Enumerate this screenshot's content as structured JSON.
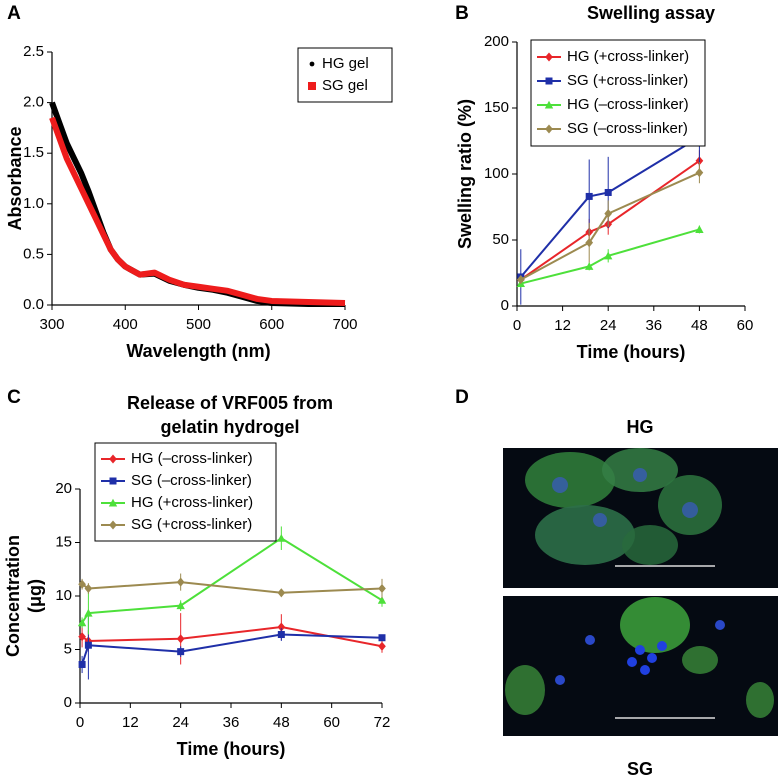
{
  "chart_data": [
    {
      "panel": "A",
      "type": "line",
      "xlabel": "Wavelength (nm)",
      "ylabel": "Absorbance",
      "x": [
        300,
        310,
        320,
        330,
        340,
        350,
        360,
        370,
        380,
        390,
        400,
        420,
        440,
        460,
        480,
        500,
        520,
        540,
        560,
        580,
        600,
        650,
        700
      ],
      "xlim": [
        300,
        700
      ],
      "xticks": [
        300,
        400,
        500,
        600,
        700
      ],
      "ylim": [
        0,
        2.5
      ],
      "yticks": [
        {
          "value": 0,
          "label": "0.0"
        },
        0.5,
        {
          "value": 1,
          "label": "1.0"
        },
        1.5,
        {
          "value": 2,
          "label": "2.0"
        },
        2.5
      ],
      "legend": "upper right",
      "series": [
        {
          "name": "HG gel",
          "color": "#000000",
          "marker": "circle",
          "values": [
            2.0,
            1.8,
            1.6,
            1.45,
            1.3,
            1.12,
            0.92,
            0.72,
            0.55,
            0.45,
            0.38,
            0.3,
            0.31,
            0.24,
            0.2,
            0.17,
            0.15,
            0.12,
            0.08,
            0.04,
            0.02,
            0.01,
            0.01
          ]
        },
        {
          "name": "SG gel",
          "color": "#ee1c1c",
          "marker": "square",
          "values": [
            1.85,
            1.65,
            1.45,
            1.3,
            1.15,
            1.0,
            0.85,
            0.7,
            0.55,
            0.45,
            0.38,
            0.3,
            0.32,
            0.25,
            0.2,
            0.18,
            0.16,
            0.14,
            0.1,
            0.06,
            0.04,
            0.03,
            0.02
          ]
        }
      ]
    },
    {
      "panel": "B",
      "type": "line",
      "title": "Swelling assay",
      "xlabel": "Time (hours)",
      "ylabel": "Swelling ratio (%)",
      "x": [
        1,
        19,
        24,
        48
      ],
      "xlim": [
        0,
        60
      ],
      "xticks": [
        0,
        12,
        24,
        36,
        48,
        60
      ],
      "ylim": [
        0,
        200
      ],
      "yticks": [
        0,
        50,
        100,
        150,
        200
      ],
      "legend": "upper left",
      "series": [
        {
          "name": "HG (+cross-linker)",
          "color": "#e8262a",
          "marker": "diamond",
          "values": [
            20,
            56,
            62,
            110
          ],
          "errors": [
            3,
            10,
            8,
            8
          ]
        },
        {
          "name": "SG (+cross-linker)",
          "color": "#1f2fa8",
          "marker": "square",
          "values": [
            22,
            83,
            86,
            128
          ],
          "errors": [
            21,
            28,
            27,
            22
          ]
        },
        {
          "name": "HG (–cross-linker)",
          "color": "#4de03a",
          "marker": "triangle",
          "values": [
            17,
            30,
            38,
            58
          ],
          "errors": [
            3,
            3,
            5,
            3
          ]
        },
        {
          "name": "SG (–cross-linker)",
          "color": "#9c8a50",
          "marker": "diamond",
          "values": [
            20,
            48,
            70,
            101
          ],
          "errors": [
            3,
            15,
            10,
            8
          ]
        }
      ]
    },
    {
      "panel": "C",
      "type": "line",
      "title": [
        "Release of VRF005 from",
        "gelatin hydrogel"
      ],
      "xlabel": "Time (hours)",
      "ylabel": [
        "Concentration",
        "(μg)"
      ],
      "x": [
        0.5,
        2,
        24,
        48,
        72
      ],
      "xlim": [
        0,
        72
      ],
      "xticks": [
        0,
        12,
        24,
        36,
        48,
        60,
        72
      ],
      "ylim": [
        0,
        20
      ],
      "yticks": [
        0,
        5,
        10,
        15,
        20
      ],
      "legend": "upper left",
      "series": [
        {
          "name": "HG (–cross-linker)",
          "color": "#e8262a",
          "marker": "diamond",
          "values": [
            6.2,
            5.8,
            6.0,
            7.1,
            5.3
          ],
          "errors": [
            1.0,
            1.0,
            2.4,
            1.2,
            0.6
          ]
        },
        {
          "name": "SG (–cross-linker)",
          "color": "#1f2fa8",
          "marker": "square",
          "values": [
            3.6,
            5.4,
            4.8,
            6.4,
            6.1
          ],
          "errors": [
            0.8,
            3.2,
            0.5,
            0.6,
            0.3
          ]
        },
        {
          "name": "HG (+cross-linker)",
          "color": "#4de03a",
          "marker": "triangle",
          "values": [
            7.5,
            8.4,
            9.1,
            15.4,
            9.6
          ],
          "errors": [
            0.5,
            2.0,
            0.5,
            1.1,
            0.6
          ]
        },
        {
          "name": "SG (+cross-linker)",
          "color": "#9c8a50",
          "marker": "diamond",
          "values": [
            11.1,
            10.7,
            11.3,
            10.3,
            10.7
          ],
          "errors": [
            0.5,
            0.5,
            0.8,
            0.3,
            0.9
          ]
        }
      ]
    }
  ],
  "image_panel": {
    "panel": "D",
    "labels": [
      "HG",
      "SG"
    ]
  }
}
